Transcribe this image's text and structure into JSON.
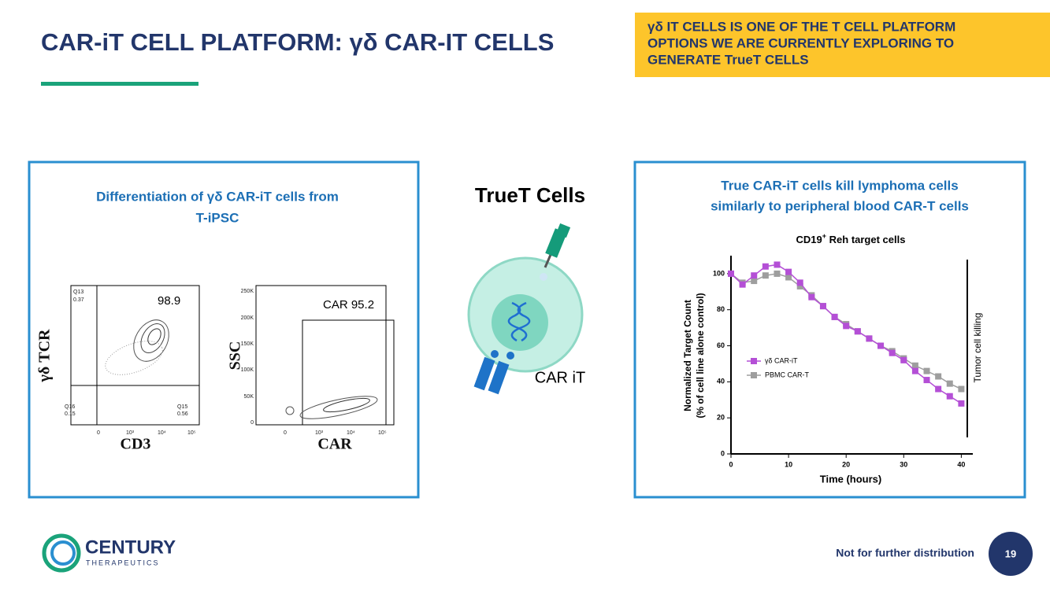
{
  "header": {
    "title": "CAR-iT CELL PLATFORM:  γδ CAR-IT CELLS",
    "callout": [
      "γδ IT CELLS IS ONE OF THE T CELL PLATFORM",
      "OPTIONS WE ARE CURRENTLY EXPLORING TO",
      "GENERATE TrueT CELLS"
    ]
  },
  "left_panel": {
    "title": [
      "Differentiation of γδ CAR-iT cells from",
      "T-iPSC"
    ],
    "plot1": {
      "y_label": "γδ TCR",
      "x_label": "CD3",
      "gate_value": "98.9",
      "quadrants": [
        "Q13",
        "0.37",
        "Q16",
        "0.15",
        "Q15",
        "0.56"
      ],
      "xticks": [
        "0",
        "10³",
        "10⁴",
        "10⁵"
      ]
    },
    "plot2": {
      "y_label": "SSC",
      "x_label": "CAR",
      "gate_value": "CAR 95.2",
      "yticks": [
        "250K",
        "200K",
        "150K",
        "100K",
        "50K",
        "0"
      ],
      "xticks": [
        "0",
        "10³",
        "10⁴",
        "10⁵"
      ]
    }
  },
  "center": {
    "title": "TrueT Cells",
    "label": "CAR iT"
  },
  "chart": {
    "type": "line",
    "title": [
      "CD19",
      "+",
      " Reh target cells"
    ],
    "y_label": [
      "Normalized Target Count",
      "(% of cell line alone control)"
    ],
    "x_label": "Time (hours)",
    "annotation": "Tumor cell killing",
    "panel_title": [
      "True CAR-iT cells kill lymphoma cells",
      "similarly to peripheral blood CAR-T cells"
    ],
    "x": [
      0,
      2,
      4,
      6,
      8,
      10,
      12,
      14,
      16,
      18,
      20,
      22,
      24,
      26,
      28,
      30,
      32,
      34,
      36,
      38,
      40
    ],
    "series": [
      {
        "name": "PBMC CAR-T",
        "color": "#9e9e9e",
        "values": [
          100,
          95,
          96,
          99,
          100,
          98,
          93,
          88,
          82,
          76,
          72,
          68,
          64,
          60,
          57,
          53,
          49,
          46,
          43,
          39,
          36
        ]
      },
      {
        "name": "γδ CAR-iT",
        "color": "#b44fd6",
        "values": [
          100,
          94,
          99,
          104,
          105,
          101,
          95,
          87,
          82,
          76,
          71,
          68,
          64,
          60,
          56,
          52,
          46,
          41,
          36,
          32,
          28
        ]
      }
    ],
    "xlim": [
      0,
      42
    ],
    "xticks": [
      0,
      10,
      20,
      30,
      40
    ],
    "ylim": [
      0,
      110
    ],
    "yticks": [
      0,
      20,
      40,
      60,
      80,
      100
    ]
  },
  "footer": {
    "logo": "CENTURY",
    "logo_sub": "THERAPEUTICS",
    "note": "Not for further distribution",
    "page": "19"
  }
}
